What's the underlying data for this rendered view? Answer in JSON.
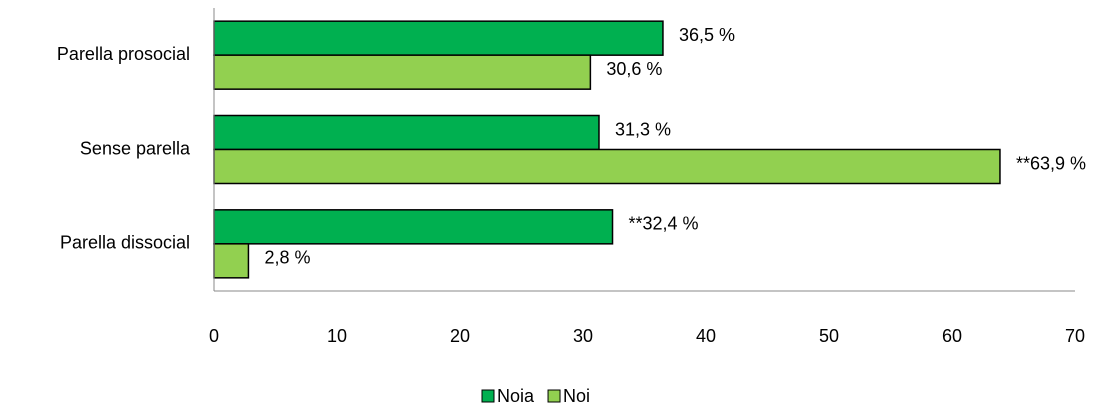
{
  "chart_data": {
    "type": "barh",
    "categories": [
      "Parella prosocial",
      "Sense parella",
      "Parella dissocial"
    ],
    "series": [
      {
        "name": "Noia",
        "color": "#00b050",
        "values": [
          36.5,
          31.3,
          32.4
        ],
        "value_labels": [
          "36,5 %",
          "31,3 %",
          "**32,4 %"
        ]
      },
      {
        "name": "Noi",
        "color": "#92d050",
        "values": [
          30.6,
          63.9,
          2.8
        ],
        "value_labels": [
          "30,6 %",
          "**63,9 %",
          "2,8 %"
        ]
      }
    ],
    "xlim": [
      0,
      70
    ],
    "xticks": [
      0,
      10,
      20,
      30,
      40,
      50,
      60,
      70
    ],
    "grid": false,
    "legend": "bottom"
  }
}
